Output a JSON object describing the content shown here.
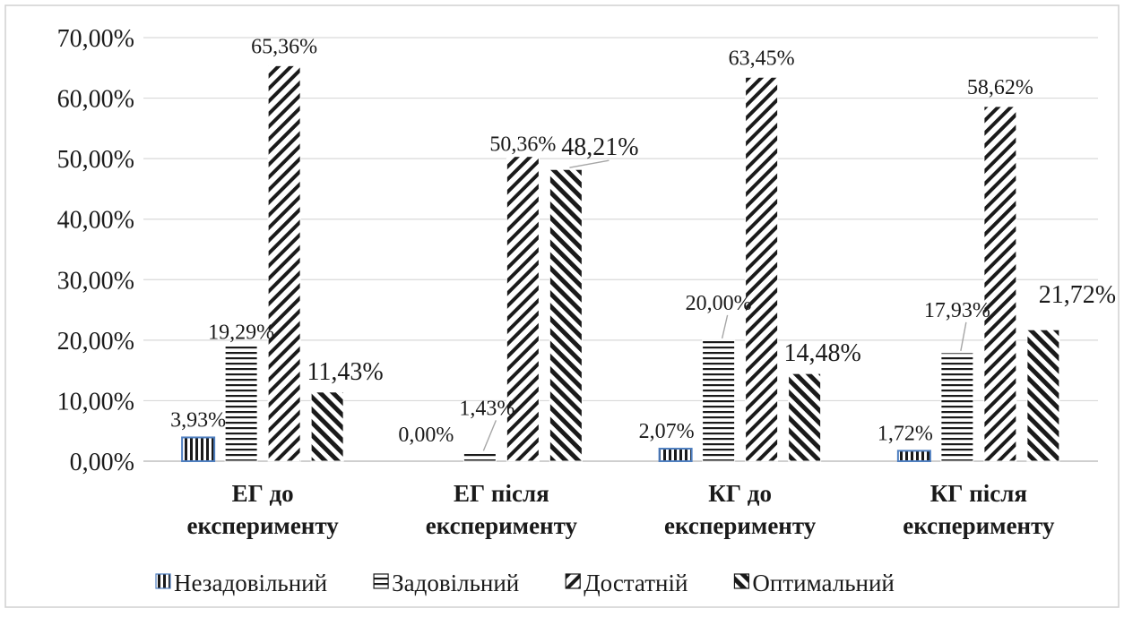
{
  "chart_data": {
    "type": "bar",
    "title": "",
    "xlabel": "",
    "ylabel": "",
    "ylim": [
      0,
      70
    ],
    "grid": true,
    "legend_position": "bottom",
    "y_ticks": [
      "0,00%",
      "10,00%",
      "20,00%",
      "30,00%",
      "40,00%",
      "50,00%",
      "60,00%",
      "70,00%"
    ],
    "categories": [
      [
        "ЕГ до",
        "експерименту"
      ],
      [
        "ЕГ після",
        "експерименту"
      ],
      [
        "КГ до",
        "експерименту"
      ],
      [
        "КГ після",
        "експерименту"
      ]
    ],
    "series": [
      {
        "name": "Незадовільний",
        "pattern": "vertical",
        "values": [
          3.93,
          0.0,
          2.07,
          1.72
        ],
        "labels": [
          "3,93%",
          "0,00%",
          "2,07%",
          "1,72%"
        ]
      },
      {
        "name": "Задовільний",
        "pattern": "horizontal",
        "values": [
          19.29,
          1.43,
          20.0,
          17.93
        ],
        "labels": [
          "19,29%",
          "1,43%",
          "20,00%",
          "17,93%"
        ]
      },
      {
        "name": "Достатній",
        "pattern": "diag-down",
        "values": [
          65.36,
          50.36,
          63.45,
          58.62
        ],
        "labels": [
          "65,36%",
          "50,36%",
          "63,45%",
          "58,62%"
        ]
      },
      {
        "name": "Оптимальний",
        "pattern": "diag-up",
        "values": [
          11.43,
          48.21,
          14.48,
          21.72
        ],
        "labels": [
          "11,43%",
          "48,21%",
          "14,48%",
          "21,72%"
        ]
      }
    ],
    "colors": {
      "accent_blue": "#4f7fc0",
      "bar_fill": "#1a1a1a",
      "bar_bg": "#ffffff",
      "grid": "#d9d9d9"
    }
  }
}
